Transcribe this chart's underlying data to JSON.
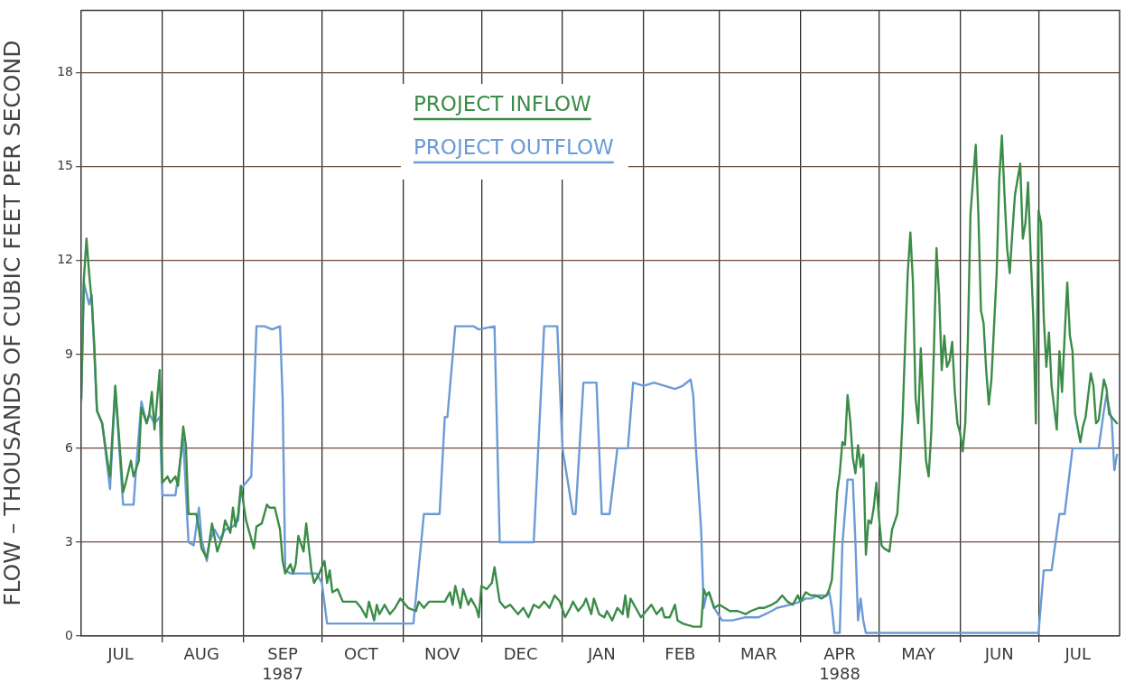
{
  "chart_data": {
    "type": "line",
    "ylabel": "FLOW – THOUSANDS OF CUBIC FEET PER SECOND",
    "xlim": [
      "1987-07-01",
      "1988-08-01"
    ],
    "xticks": [
      {
        "value": "1987-07-16",
        "label": "JUL"
      },
      {
        "value": "1987-08-01",
        "label": null
      },
      {
        "value": "1987-08-16",
        "label": "AUG"
      },
      {
        "value": "1987-09-01",
        "label": null
      },
      {
        "value": "1987-09-16",
        "label": "SEP\n1987"
      },
      {
        "value": "1987-10-01",
        "label": null
      },
      {
        "value": "1987-10-16",
        "label": "OCT"
      },
      {
        "value": "1987-11-01",
        "label": null
      },
      {
        "value": "1987-11-16",
        "label": "NOV"
      },
      {
        "value": "1987-12-01",
        "label": null
      },
      {
        "value": "1987-12-16",
        "label": "DEC"
      },
      {
        "value": "1988-01-01",
        "label": null
      },
      {
        "value": "1988-01-16",
        "label": "JAN"
      },
      {
        "value": "1988-02-01",
        "label": null
      },
      {
        "value": "1988-02-15",
        "label": "FEB"
      },
      {
        "value": "1988-03-01",
        "label": null
      },
      {
        "value": "1988-03-16",
        "label": "MAR"
      },
      {
        "value": "1988-04-01",
        "label": null
      },
      {
        "value": "1988-04-16",
        "label": "APR\n1988"
      },
      {
        "value": "1988-05-01",
        "label": null
      },
      {
        "value": "1988-05-16",
        "label": "MAY"
      },
      {
        "value": "1988-06-01",
        "label": null
      },
      {
        "value": "1988-06-16",
        "label": "JUN"
      },
      {
        "value": "1988-07-01",
        "label": null
      },
      {
        "value": "1988-07-16",
        "label": "JUL"
      }
    ],
    "ylim": [
      0,
      20
    ],
    "yticks": [
      0,
      3,
      6,
      9,
      12,
      15,
      18
    ],
    "grid": true,
    "legend": "top",
    "series": [
      {
        "name": "PROJECT INFLOW",
        "color": "#3b8c48",
        "x": [
          "1987-07-01",
          "1987-07-02",
          "1987-07-03",
          "1987-07-04",
          "1987-07-05",
          "1987-07-06",
          "1987-07-07",
          "1987-07-09",
          "1987-07-11",
          "1987-07-12",
          "1987-07-14",
          "1987-07-17",
          "1987-07-18",
          "1987-07-20",
          "1987-07-21",
          "1987-07-23",
          "1987-07-24",
          "1987-07-26",
          "1987-07-27",
          "1987-07-28",
          "1987-07-29",
          "1987-07-31",
          "1987-08-01",
          "1987-08-03",
          "1987-08-04",
          "1987-08-06",
          "1987-08-07",
          "1987-08-09",
          "1987-08-10",
          "1987-08-11",
          "1987-08-14",
          "1987-08-15",
          "1987-08-16",
          "1987-08-18",
          "1987-08-19",
          "1987-08-20",
          "1987-08-22",
          "1987-08-24",
          "1987-08-25",
          "1987-08-27",
          "1987-08-28",
          "1987-08-29",
          "1987-08-30",
          "1987-08-31",
          "1987-09-02",
          "1987-09-03",
          "1987-09-05",
          "1987-09-06",
          "1987-09-08",
          "1987-09-10",
          "1987-09-11",
          "1987-09-13",
          "1987-09-15",
          "1987-09-16",
          "1987-09-17",
          "1987-09-19",
          "1987-09-20",
          "1987-09-21",
          "1987-09-22",
          "1987-09-24",
          "1987-09-25",
          "1987-09-27",
          "1987-09-28",
          "1987-09-30",
          "1987-10-02",
          "1987-10-03",
          "1987-10-04",
          "1987-10-05",
          "1987-10-07",
          "1987-10-09",
          "1987-10-14",
          "1987-10-16",
          "1987-10-18",
          "1987-10-19",
          "1987-10-21",
          "1987-10-22",
          "1987-10-23",
          "1987-10-25",
          "1987-10-27",
          "1987-10-29",
          "1987-10-31",
          "1987-11-03",
          "1987-11-06",
          "1987-11-07",
          "1987-11-09",
          "1987-11-11",
          "1987-11-15",
          "1987-11-17",
          "1987-11-19",
          "1987-11-20",
          "1987-11-21",
          "1987-11-23",
          "1987-11-24",
          "1987-11-26",
          "1987-11-27",
          "1987-11-29",
          "1987-11-30",
          "1987-12-01",
          "1987-12-03",
          "1987-12-05",
          "1987-12-06",
          "1987-12-08",
          "1987-12-10",
          "1987-12-12",
          "1987-12-15",
          "1987-12-17",
          "1987-12-19",
          "1987-12-21",
          "1987-12-23",
          "1987-12-25",
          "1987-12-27",
          "1987-12-29",
          "1987-12-31",
          "1988-01-02",
          "1988-01-04",
          "1988-01-05",
          "1988-01-07",
          "1988-01-09",
          "1988-01-10",
          "1988-01-12",
          "1988-01-13",
          "1988-01-15",
          "1988-01-17",
          "1988-01-18",
          "1988-01-20",
          "1988-01-22",
          "1988-01-24",
          "1988-01-25",
          "1988-01-26",
          "1988-01-27",
          "1988-01-29",
          "1988-01-31",
          "1988-02-02",
          "1988-02-04",
          "1988-02-06",
          "1988-02-08",
          "1988-02-09",
          "1988-02-11",
          "1988-02-13",
          "1988-02-14",
          "1988-02-16",
          "1988-02-20",
          "1988-02-23",
          "1988-02-24",
          "1988-02-25",
          "1988-02-26",
          "1988-02-28",
          "1988-03-01",
          "1988-03-03",
          "1988-03-05",
          "1988-03-08",
          "1988-03-11",
          "1988-03-13",
          "1988-03-16",
          "1988-03-18",
          "1988-03-21",
          "1988-03-23",
          "1988-03-25",
          "1988-03-27",
          "1988-03-29",
          "1988-03-31",
          "1988-04-01",
          "1988-04-03",
          "1988-04-05",
          "1988-04-07",
          "1988-04-09",
          "1988-04-11",
          "1988-04-12",
          "1988-04-13",
          "1988-04-15",
          "1988-04-16",
          "1988-04-17",
          "1988-04-18",
          "1988-04-19",
          "1988-04-20",
          "1988-04-21",
          "1988-04-22",
          "1988-04-23",
          "1988-04-24",
          "1988-04-25",
          "1988-04-26",
          "1988-04-27",
          "1988-04-28",
          "1988-04-29",
          "1988-04-30",
          "1988-05-01",
          "1988-05-02",
          "1988-05-03",
          "1988-05-05",
          "1988-05-06",
          "1988-05-08",
          "1988-05-09",
          "1988-05-10",
          "1988-05-11",
          "1988-05-12",
          "1988-05-13",
          "1988-05-14",
          "1988-05-15",
          "1988-05-16",
          "1988-05-17",
          "1988-05-18",
          "1988-05-19",
          "1988-05-20",
          "1988-05-21",
          "1988-05-22",
          "1988-05-23",
          "1988-05-24",
          "1988-05-25",
          "1988-05-26",
          "1988-05-27",
          "1988-05-28",
          "1988-05-29",
          "1988-05-30",
          "1988-05-31",
          "1988-06-01",
          "1988-06-02",
          "1988-06-03",
          "1988-06-04",
          "1988-06-05",
          "1988-06-07",
          "1988-06-08",
          "1988-06-09",
          "1988-06-10",
          "1988-06-11",
          "1988-06-12",
          "1988-06-13",
          "1988-06-15",
          "1988-06-16",
          "1988-06-17",
          "1988-06-18",
          "1988-06-19",
          "1988-06-20",
          "1988-06-21",
          "1988-06-22",
          "1988-06-24",
          "1988-06-25",
          "1988-06-26",
          "1988-06-27",
          "1988-06-28",
          "1988-06-29",
          "1988-06-30",
          "1988-07-01",
          "1988-07-02",
          "1988-07-03",
          "1988-07-04",
          "1988-07-05",
          "1988-07-06",
          "1988-07-08",
          "1988-07-09",
          "1988-07-10",
          "1988-07-11",
          "1988-07-12",
          "1988-07-13",
          "1988-07-14",
          "1988-07-15",
          "1988-07-17",
          "1988-07-18",
          "1988-07-19",
          "1988-07-21",
          "1988-07-22",
          "1988-07-23",
          "1988-07-24",
          "1988-07-26",
          "1988-07-27",
          "1988-07-28",
          "1988-07-30",
          "1988-07-31"
        ],
        "values": [
          7.6,
          11.4,
          12.7,
          11.6,
          10.7,
          9.3,
          7.2,
          6.8,
          5.6,
          5.1,
          8.0,
          4.6,
          4.9,
          5.6,
          5.1,
          5.6,
          7.3,
          6.8,
          7.1,
          7.8,
          6.6,
          8.5,
          4.9,
          5.1,
          4.9,
          5.1,
          4.8,
          6.7,
          6.1,
          3.9,
          3.9,
          3.4,
          2.8,
          2.5,
          3.0,
          3.6,
          2.7,
          3.2,
          3.7,
          3.3,
          4.1,
          3.5,
          3.9,
          4.8,
          3.7,
          3.4,
          2.8,
          3.5,
          3.6,
          4.2,
          4.1,
          4.1,
          3.4,
          2.4,
          2.0,
          2.3,
          2.0,
          2.3,
          3.2,
          2.7,
          3.6,
          2.1,
          1.7,
          2.0,
          2.4,
          1.7,
          2.1,
          1.4,
          1.5,
          1.1,
          1.1,
          0.9,
          0.6,
          1.1,
          0.5,
          1.0,
          0.7,
          1.0,
          0.7,
          0.9,
          1.2,
          0.9,
          0.8,
          1.1,
          0.9,
          1.1,
          1.1,
          1.1,
          1.4,
          1.0,
          1.6,
          0.9,
          1.5,
          1.0,
          1.2,
          0.9,
          0.6,
          1.6,
          1.5,
          1.7,
          2.2,
          1.1,
          0.9,
          1.0,
          0.7,
          0.9,
          0.6,
          1.0,
          0.9,
          1.1,
          0.9,
          1.3,
          1.1,
          0.6,
          0.9,
          1.1,
          0.8,
          1.0,
          1.2,
          0.7,
          1.2,
          0.7,
          0.6,
          0.8,
          0.5,
          0.9,
          0.7,
          1.3,
          0.6,
          1.2,
          0.9,
          0.6,
          0.8,
          1.0,
          0.7,
          0.9,
          0.6,
          0.6,
          1.0,
          0.5,
          0.4,
          0.3,
          0.3,
          1.5,
          1.3,
          1.4,
          0.9,
          1.0,
          0.9,
          0.8,
          0.8,
          0.7,
          0.8,
          0.9,
          0.9,
          1.0,
          1.1,
          1.3,
          1.1,
          1.0,
          1.3,
          1.1,
          1.4,
          1.3,
          1.3,
          1.2,
          1.3,
          1.5,
          1.8,
          4.6,
          5.2,
          6.2,
          6.1,
          7.7,
          6.9,
          5.7,
          5.2,
          6.1,
          5.4,
          5.8,
          2.6,
          3.7,
          3.6,
          4.1,
          4.9,
          3.8,
          2.9,
          2.8,
          2.7,
          3.4,
          3.9,
          5.2,
          6.9,
          9.3,
          11.6,
          12.9,
          11.3,
          7.6,
          6.8,
          9.2,
          7.3,
          5.6,
          5.1,
          6.5,
          9.1,
          12.4,
          10.9,
          8.5,
          9.6,
          8.6,
          8.8,
          9.4,
          7.8,
          6.8,
          6.5,
          5.9,
          6.8,
          9.5,
          13.5,
          15.7,
          13.5,
          10.4,
          10.0,
          8.5,
          7.4,
          8.2,
          11.6,
          14.6,
          16.0,
          14.1,
          12.4,
          11.6,
          12.9,
          14.1,
          15.1,
          12.7,
          13.2,
          14.5,
          12.2,
          10.2,
          6.8,
          13.6,
          13.2,
          10.2,
          8.6,
          9.7,
          8.0,
          6.6,
          9.1,
          7.8,
          9.6,
          11.3,
          9.6,
          9.1,
          7.1,
          6.2,
          6.7,
          7.0,
          8.4,
          8.0,
          6.8,
          6.9,
          8.2,
          7.9,
          7.1,
          6.9,
          6.8
        ]
      },
      {
        "name": "PROJECT OUTFLOW",
        "color": "#6b9bd6",
        "x": [
          "1987-07-01",
          "1987-07-02",
          "1987-07-04",
          "1987-07-05",
          "1987-07-06",
          "1987-07-07",
          "1987-07-09",
          "1987-07-12",
          "1987-07-14",
          "1987-07-17",
          "1987-07-21",
          "1987-07-22",
          "1987-07-24",
          "1987-07-26",
          "1987-07-27",
          "1987-07-29",
          "1987-07-31",
          "1987-08-01",
          "1987-08-06",
          "1987-08-09",
          "1987-08-11",
          "1987-08-13",
          "1987-08-15",
          "1987-08-16",
          "1987-08-18",
          "1987-08-19",
          "1987-08-21",
          "1987-08-23",
          "1987-08-25",
          "1987-08-28",
          "1987-08-30",
          "1987-08-31",
          "1987-09-02",
          "1987-09-04",
          "1987-09-05",
          "1987-09-06",
          "1987-09-09",
          "1987-09-12",
          "1987-09-15",
          "1987-09-16",
          "1987-09-17",
          "1987-09-19",
          "1987-09-29",
          "1987-10-01",
          "1987-10-03",
          "1987-11-05",
          "1987-11-09",
          "1987-11-15",
          "1987-11-17",
          "1987-11-18",
          "1987-11-21",
          "1987-11-28",
          "1987-11-30",
          "1987-12-06",
          "1987-12-08",
          "1987-12-21",
          "1987-12-25",
          "1987-12-30",
          "1988-01-01",
          "1988-01-05",
          "1988-01-06",
          "1988-01-09",
          "1988-01-14",
          "1988-01-16",
          "1988-01-19",
          "1988-01-22",
          "1988-01-26",
          "1988-01-28",
          "1988-02-01",
          "1988-02-05",
          "1988-02-09",
          "1988-02-13",
          "1988-02-16",
          "1988-02-19",
          "1988-02-20",
          "1988-02-21",
          "1988-02-23",
          "1988-02-24",
          "1988-02-25",
          "1988-02-26",
          "1988-02-28",
          "1988-03-02",
          "1988-03-06",
          "1988-03-11",
          "1988-03-16",
          "1988-03-21",
          "1988-03-23",
          "1988-03-28",
          "1988-04-01",
          "1988-04-03",
          "1988-04-05",
          "1988-04-08",
          "1988-04-11",
          "1988-04-12",
          "1988-04-13",
          "1988-04-14",
          "1988-04-16",
          "1988-04-17",
          "1988-04-19",
          "1988-04-21",
          "1988-04-22",
          "1988-04-23",
          "1988-04-24",
          "1988-04-25",
          "1988-04-26",
          "1988-07-01",
          "1988-07-03",
          "1988-07-06",
          "1988-07-09",
          "1988-07-11",
          "1988-07-14",
          "1988-07-24",
          "1988-07-26",
          "1988-07-27",
          "1988-07-29",
          "1988-07-30",
          "1988-07-31"
        ],
        "values": [
          7.5,
          11.3,
          10.6,
          10.9,
          9.0,
          7.2,
          6.8,
          4.7,
          7.9,
          4.2,
          4.2,
          5.4,
          7.5,
          6.8,
          7.1,
          6.8,
          7.0,
          4.5,
          4.5,
          6.3,
          3.0,
          2.9,
          4.1,
          3.1,
          2.4,
          3.0,
          3.4,
          3.1,
          3.4,
          3.5,
          3.7,
          4.7,
          4.9,
          5.1,
          7.6,
          9.9,
          9.9,
          9.8,
          9.9,
          7.6,
          2.1,
          2.0,
          2.0,
          1.7,
          0.4,
          0.4,
          3.9,
          3.9,
          7.0,
          7.0,
          9.9,
          9.9,
          9.8,
          9.9,
          3.0,
          3.0,
          9.9,
          9.9,
          6.0,
          3.9,
          3.9,
          8.1,
          8.1,
          3.9,
          3.9,
          6.0,
          6.0,
          8.1,
          8.0,
          8.1,
          8.0,
          7.9,
          8.0,
          8.2,
          7.7,
          6.0,
          3.4,
          0.9,
          1.3,
          1.4,
          0.9,
          0.5,
          0.5,
          0.6,
          0.6,
          0.8,
          0.9,
          1.0,
          1.1,
          1.2,
          1.2,
          1.3,
          1.3,
          1.4,
          0.9,
          0.1,
          0.1,
          2.9,
          5.0,
          5.0,
          3.0,
          0.5,
          1.2,
          0.5,
          0.1,
          0.1,
          2.1,
          2.1,
          3.9,
          3.9,
          6.0,
          6.0,
          7.2,
          7.7,
          6.9,
          5.3,
          5.8
        ]
      }
    ]
  }
}
